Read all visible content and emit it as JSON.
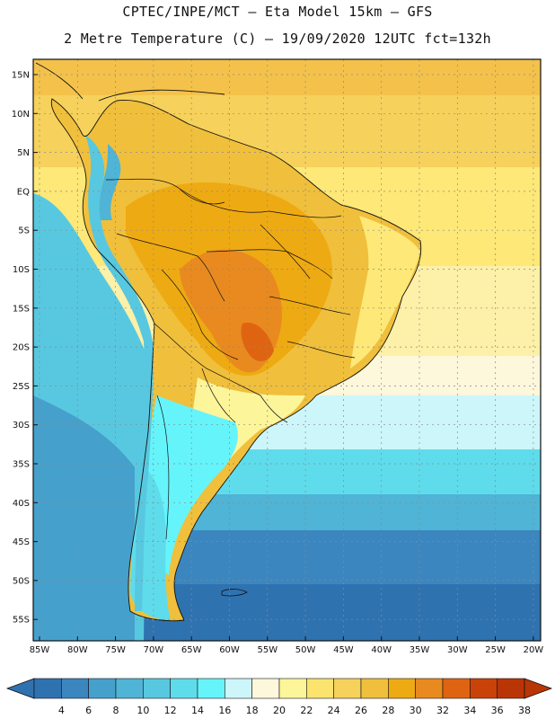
{
  "title_line1": "CPTEC/INPE/MCT –  Eta Model 15km – GFS",
  "title_line2": "2 Metre Temperature (C) – 19/09/2020 12UTC fct=132h",
  "lat_labels": [
    "15N",
    "10N",
    "5N",
    "EQ",
    "5S",
    "10S",
    "15S",
    "20S",
    "25S",
    "30S",
    "35S",
    "40S",
    "45S",
    "50S",
    "55S"
  ],
  "lon_labels": [
    "85W",
    "80W",
    "75W",
    "70W",
    "65W",
    "60W",
    "55W",
    "50W",
    "45W",
    "40W",
    "35W",
    "30W",
    "25W",
    "20W"
  ],
  "colorbar": {
    "labels": [
      "4",
      "6",
      "8",
      "10",
      "12",
      "14",
      "16",
      "18",
      "20",
      "22",
      "24",
      "26",
      "28",
      "30",
      "32",
      "34",
      "36",
      "38"
    ],
    "colors": [
      "#2f72b0",
      "#3b86bf",
      "#46a0cc",
      "#4fb4d6",
      "#58c8e0",
      "#5fdceb",
      "#66f4fb",
      "#cdf6fb",
      "#fdf7dc",
      "#fdf59a",
      "#fbe46e",
      "#f6d15b",
      "#f0bf3c",
      "#eeaa12",
      "#e88a1f",
      "#df6412",
      "#c94308",
      "#ba3506"
    ],
    "low_color": "#2f72b0",
    "high_color": "#ba3506"
  }
}
